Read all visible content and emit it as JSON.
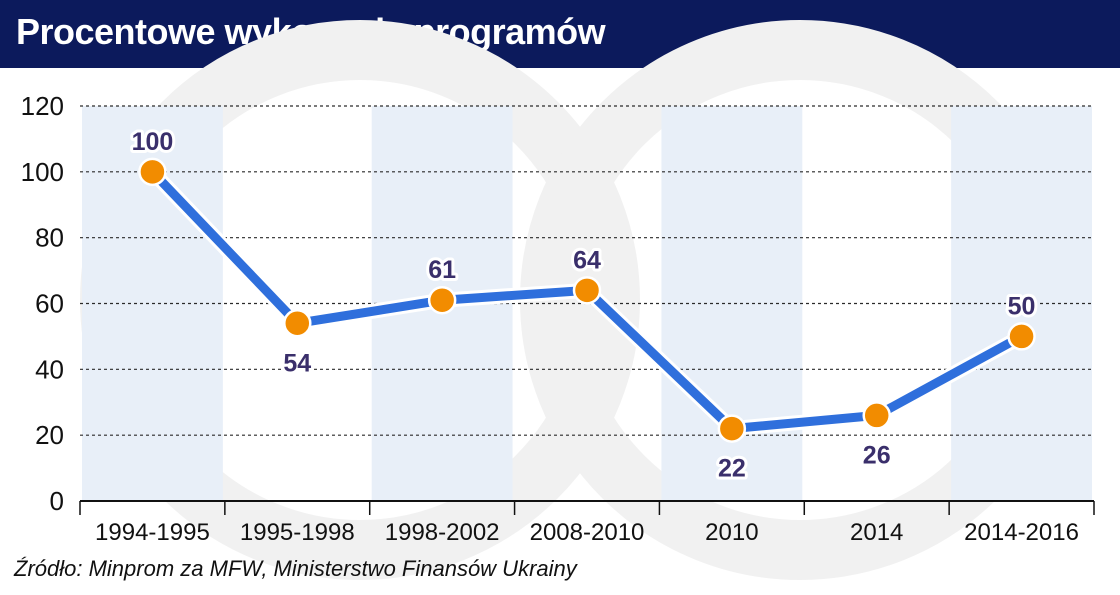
{
  "header": {
    "title": "Procentowe wykonanie programów"
  },
  "source": "Źródło: Minprom za MFW, Ministerstwo Finansów Ukrainy",
  "colors": {
    "header_bg": "#0c1a5c",
    "line": "#2f6fdc",
    "marker": "#f28c00",
    "label_text": "#3a2f6b",
    "band": "#e8eff8"
  },
  "chart_data": {
    "type": "line",
    "title": "Procentowe wykonanie programów",
    "categories": [
      "1994-1995",
      "1995-1998",
      "1998-2002",
      "2008-2010",
      "2010",
      "2014",
      "2014-2016"
    ],
    "series": [
      {
        "values": [
          100,
          54,
          61,
          64,
          22,
          26,
          50
        ]
      }
    ],
    "data_labels": [
      "100",
      "54",
      "61",
      "64",
      "22",
      "26",
      "50"
    ],
    "ylim": [
      0,
      120
    ],
    "yticks": [
      0,
      20,
      40,
      60,
      80,
      100,
      120
    ],
    "xlabel": "",
    "ylabel": "",
    "grid": true,
    "legend": "none"
  }
}
